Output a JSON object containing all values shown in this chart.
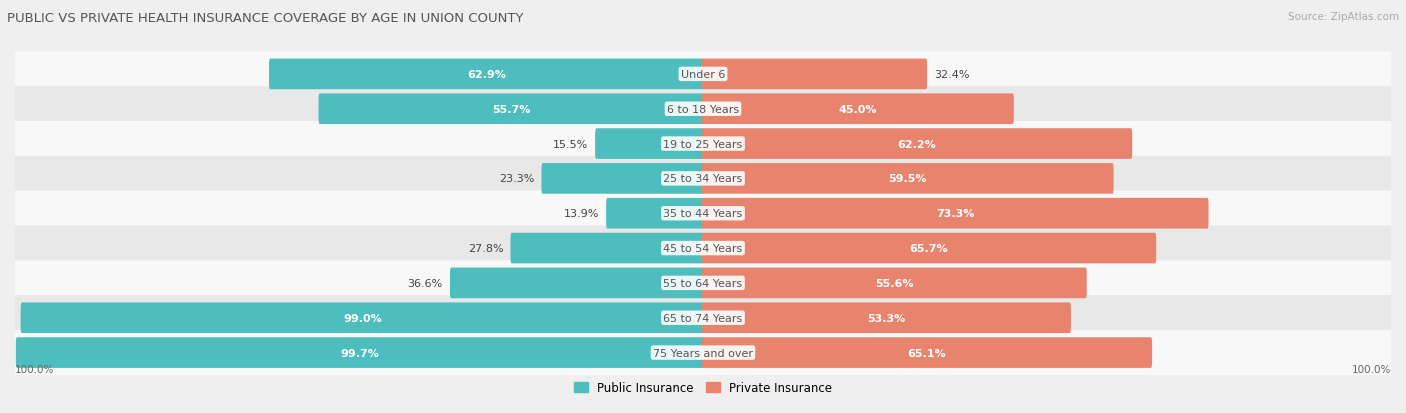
{
  "title": "PUBLIC VS PRIVATE HEALTH INSURANCE COVERAGE BY AGE IN UNION COUNTY",
  "source": "Source: ZipAtlas.com",
  "categories": [
    "Under 6",
    "6 to 18 Years",
    "19 to 25 Years",
    "25 to 34 Years",
    "35 to 44 Years",
    "45 to 54 Years",
    "55 to 64 Years",
    "65 to 74 Years",
    "75 Years and over"
  ],
  "public_values": [
    62.9,
    55.7,
    15.5,
    23.3,
    13.9,
    27.8,
    36.6,
    99.0,
    99.7
  ],
  "private_values": [
    32.4,
    45.0,
    62.2,
    59.5,
    73.3,
    65.7,
    55.6,
    53.3,
    65.1
  ],
  "public_color": "#4dbdbd",
  "private_color": "#e8846e",
  "background_color": "#efefef",
  "row_bg_even": "#f8f8f8",
  "row_bg_odd": "#e8e8e8",
  "label_fontsize": 8.0,
  "title_fontsize": 9.5,
  "source_fontsize": 7.5,
  "axis_label_fontsize": 7.5,
  "legend_fontsize": 8.5,
  "bar_height": 0.52,
  "max_value": 100.0,
  "inside_label_threshold": 40,
  "pub_inside_color": "white",
  "pub_outside_color": "#444444",
  "priv_inside_color": "white",
  "priv_outside_color": "#444444",
  "cat_label_color": "#555555"
}
